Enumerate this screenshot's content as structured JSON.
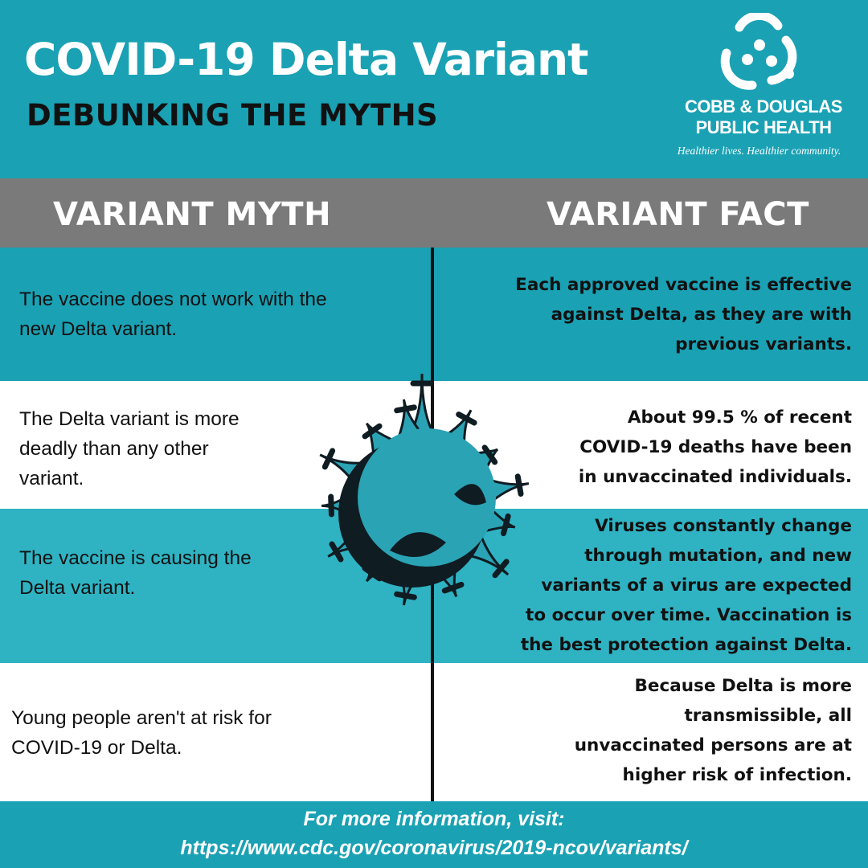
{
  "header": {
    "title": "COVID-19 Delta Variant",
    "subtitle": "DEBUNKING THE MYTHS",
    "org_name": "COBB & DOUGLAS\nPUBLIC HEALTH",
    "org_tagline": "Healthier lives. Healthier community."
  },
  "columns": {
    "myth_heading": "VARIANT MYTH",
    "fact_heading": "VARIANT FACT"
  },
  "rows": [
    {
      "myth": "The vaccine does not work with the new Delta variant.",
      "fact": "Each approved vaccine is effective\nagainst Delta, as they are with\nprevious variants."
    },
    {
      "myth": "The Delta variant is more deadly than any other variant.",
      "fact": "About 99.5 % of recent\nCOVID-19 deaths have been\nin unvaccinated individuals."
    },
    {
      "myth": "The vaccine is causing the Delta variant.",
      "fact": "Viruses constantly change\nthrough mutation, and new\nvariants of a virus are expected\nto occur over time. Vaccination is\nthe best protection against Delta."
    },
    {
      "myth": "Young people aren't at risk for COVID-19 or Delta.",
      "fact": "Because Delta is more\ntransmissible, all\nunvaccinated persons are at\nhigher risk of infection."
    }
  ],
  "footer": {
    "line1": "For more information, visit:",
    "line2": "https://www.cdc.gov/coronavirus/2019-ncov/variants/"
  },
  "colors": {
    "teal": "#1aa1b4",
    "light_teal": "#2fb3c3",
    "gray": "#7a7a7a",
    "virus_teal": "#2aa3b5",
    "virus_dark": "#0f1c22"
  },
  "icons": [
    "organization-logo-icon",
    "virus-icon"
  ]
}
